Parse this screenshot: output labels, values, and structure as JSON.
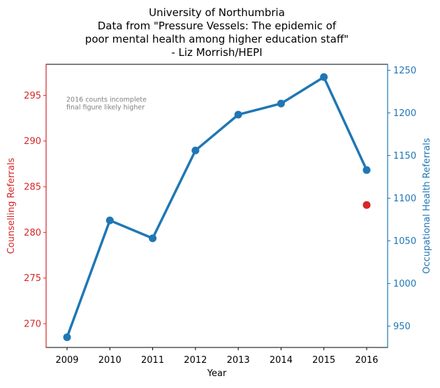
{
  "chart_data": {
    "type": "line",
    "title": [
      "University of Northumbria",
      "Data from \"Pressure Vessels: The epidemic of",
      "poor mental health among higher education staff\"",
      "- Liz Morrish/HEPI"
    ],
    "xlabel": "Year",
    "ylabel_left": "Counselling Referrals",
    "ylabel_right": "Occupational Health Referrals",
    "x": [
      "2009",
      "2010",
      "2011",
      "2012",
      "2013",
      "2014",
      "2015",
      "2016"
    ],
    "left_axis": {
      "range": [
        267.4,
        298.4
      ],
      "ticks": [
        270,
        275,
        280,
        285,
        290,
        295
      ],
      "color": "#d62728"
    },
    "right_axis": {
      "range": [
        925,
        1257
      ],
      "ticks": [
        950,
        1000,
        1050,
        1100,
        1150,
        1200,
        1250
      ],
      "color": "#1f77b4"
    },
    "series": [
      {
        "name": "",
        "axis": "right",
        "color": "#1f77b4",
        "values": [
          937,
          1074,
          1053,
          1156,
          1198,
          1211,
          1242,
          1133
        ]
      },
      {
        "name": "",
        "axis": "left",
        "color": "#d62728",
        "points": [
          {
            "x": "2016",
            "y": 283
          }
        ]
      }
    ],
    "annotation": {
      "lines": [
        "2016 counts incomplete",
        "final figure likely higher"
      ],
      "color": "#808080"
    },
    "grid": false
  }
}
